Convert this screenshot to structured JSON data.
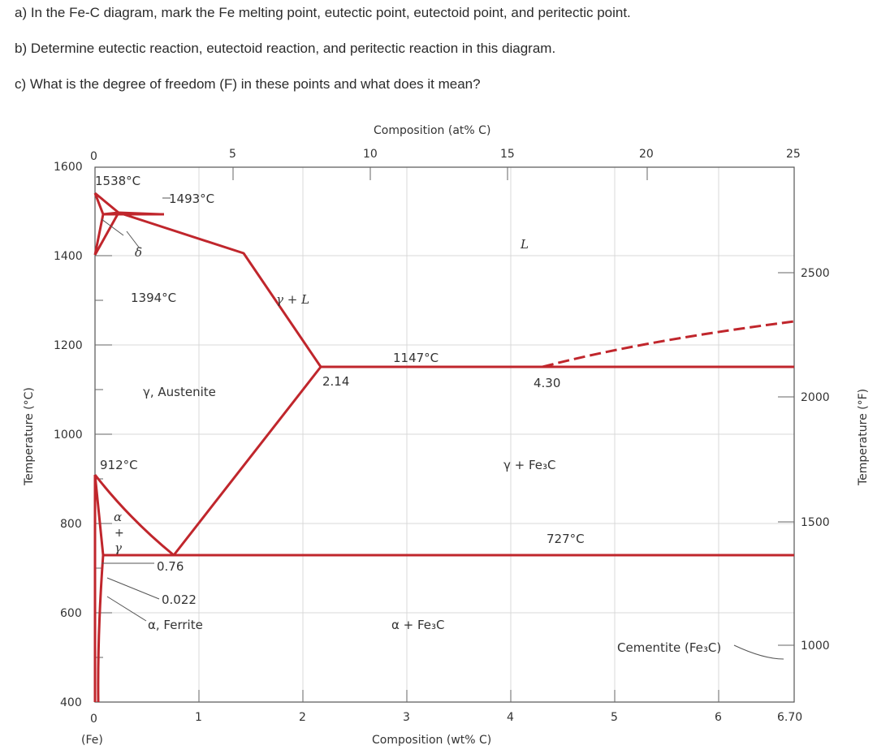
{
  "questions": {
    "a": "a) In the Fe-C diagram, mark the Fe melting point, eutectic point, eutectoid point, and peritectic point.",
    "b": "b) Determine eutectic reaction, eutectoid reaction, and peritectic reaction in this diagram.",
    "c": "c) What is the degree of freedom (F) in these points and what does it mean?"
  },
  "axes": {
    "top_title": "Composition (at% C)",
    "top_ticks": [
      "0",
      "5",
      "10",
      "15",
      "20",
      "25"
    ],
    "bottom_title": "Composition (wt% C)",
    "bottom_ticks": [
      "0",
      "1",
      "2",
      "3",
      "4",
      "5",
      "6",
      "6.70"
    ],
    "bottom_origin_note": "(Fe)",
    "left_title": "Temperature (°C)",
    "left_ticks": [
      "1600",
      "1400",
      "1200",
      "1000",
      "800",
      "600",
      "400"
    ],
    "right_title": "Temperature (°F)",
    "right_ticks": [
      "2500",
      "2000",
      "1500",
      "1000"
    ]
  },
  "labels": {
    "t1538": "1538°C",
    "t1493": "1493°C",
    "t1394": "1394°C",
    "t1147": "1147°C",
    "t912": "912°C",
    "t727": "727°C",
    "delta": "δ",
    "liquid": "L",
    "gamma_l": "γ + L",
    "austenite": "γ, Austenite",
    "c214": "2.14",
    "c430": "4.30",
    "gamma_fe3c": "γ + Fe₃C",
    "alpha": "α",
    "plus": "+",
    "gamma": "γ",
    "c076": "0.76",
    "c0022": "0.022",
    "ferrite": "α, Ferrite",
    "alpha_fe3c": "α + Fe₃C",
    "cementite": "Cementite (Fe₃C)"
  },
  "colors": {
    "phase_line": "#c0262c",
    "grid": "#d9d9d9"
  }
}
